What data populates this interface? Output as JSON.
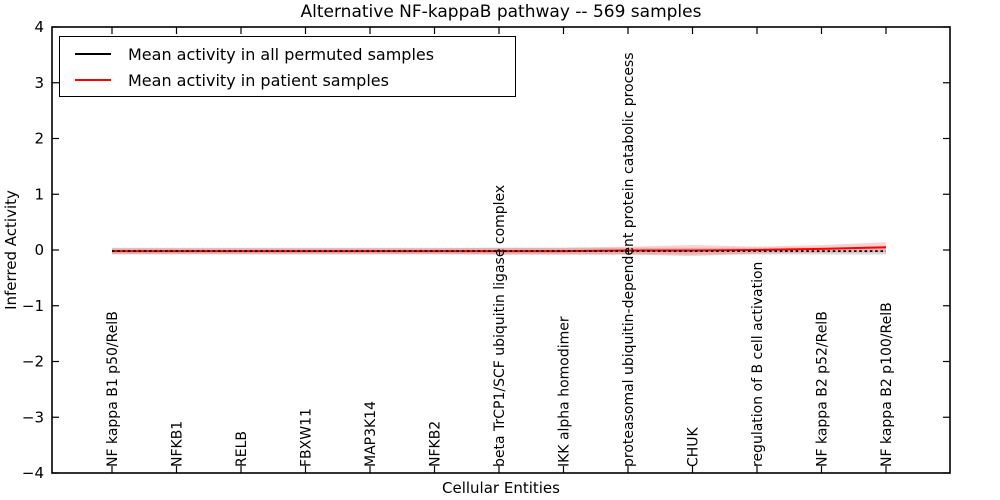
{
  "chart_data": {
    "type": "line",
    "title": "Alternative NF-kappaB pathway -- 569 samples",
    "xlabel": "Cellular Entities",
    "ylabel": "Inferred Activity",
    "ylim": [
      -4,
      4
    ],
    "yticks": [
      -4,
      -3,
      -2,
      -1,
      0,
      1,
      2,
      3,
      4
    ],
    "grid": false,
    "legend_position": "upper left",
    "frame_color": "#000000",
    "background_color": "#ffffff",
    "categories": [
      "NF kappa B1 p50/RelB",
      "NFKB1",
      "RELB",
      "FBXW11",
      "MAP3K14",
      "NFKB2",
      "beta TrCP1/SCF ubiquitin ligase complex",
      "IKK alpha homodimer",
      "proteasomal ubiquitin-dependent protein catabolic process",
      "CHUK",
      "regulation of B cell activation",
      "NF kappa B2 p52/RelB",
      "NF kappa B2 p100/RelB"
    ],
    "series": [
      {
        "name": "Mean activity in all permuted samples",
        "color": "#000000",
        "line_style": "dotted",
        "values": [
          -0.02,
          -0.02,
          -0.02,
          -0.02,
          -0.02,
          -0.02,
          -0.02,
          -0.02,
          -0.02,
          -0.02,
          -0.02,
          -0.02,
          -0.02
        ],
        "band_halfwidth": [
          0.06,
          0.06,
          0.06,
          0.06,
          0.06,
          0.06,
          0.06,
          0.06,
          0.06,
          0.06,
          0.06,
          0.06,
          0.06
        ],
        "band_color": "#808080",
        "band_opacity": 0.3
      },
      {
        "name": "Mean activity in patient samples",
        "color": "#ff0000",
        "line_style": "solid",
        "values": [
          -0.02,
          -0.02,
          -0.02,
          -0.02,
          -0.02,
          -0.02,
          -0.02,
          -0.02,
          -0.01,
          -0.01,
          0.0,
          0.02,
          0.05
        ],
        "band_halfwidth": [
          0.05,
          0.05,
          0.05,
          0.05,
          0.05,
          0.05,
          0.06,
          0.06,
          0.07,
          0.1,
          0.06,
          0.07,
          0.09
        ],
        "band_color": "#ff0000",
        "band_opacity": 0.18
      }
    ]
  }
}
